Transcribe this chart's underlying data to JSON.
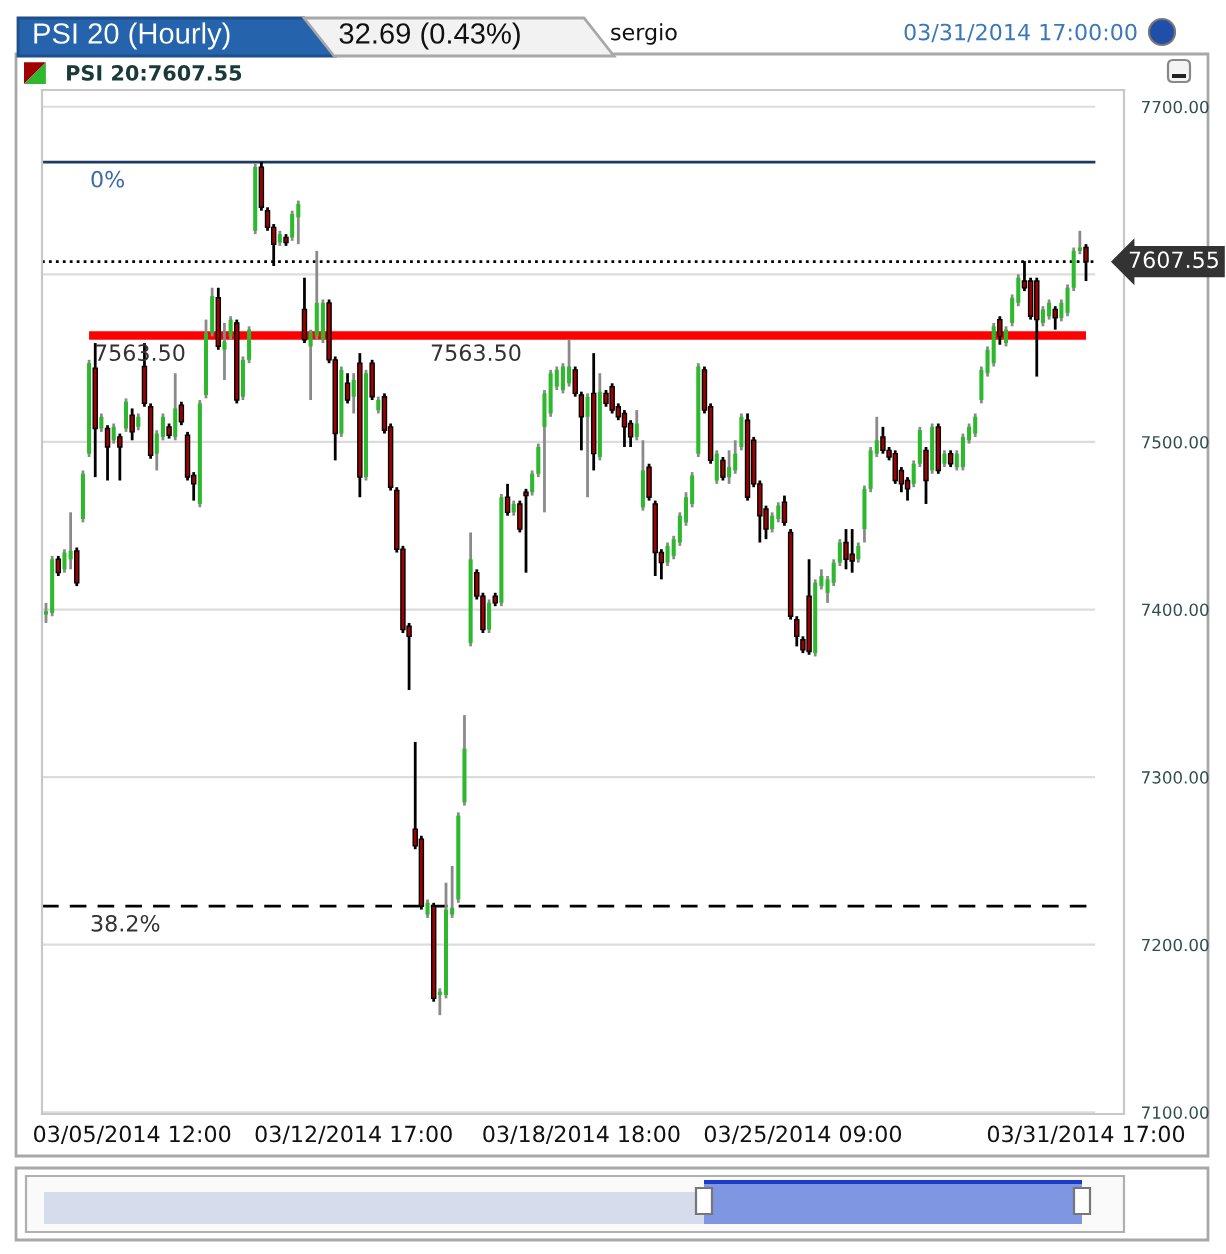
{
  "chart_data": {
    "type": "candlestick",
    "title": "PSI 20 (Hourly)",
    "subtitle": "32.69 (0.43%)",
    "annotations": [
      "sergio",
      "03/31/2014 17:00:00",
      {
        "text": "0%",
        "y": 7667
      },
      {
        "text": "38.2%",
        "y": 7223
      },
      {
        "text": "7563.50",
        "y": 7563.5
      },
      {
        "text": "7563.50",
        "y": 7563.5
      }
    ],
    "categories": [
      null,
      null,
      null,
      null,
      null,
      null,
      null,
      null,
      null,
      null,
      null,
      null,
      null,
      null,
      "03/05/2014 12:00",
      null,
      null,
      null,
      null,
      null,
      null,
      null,
      null,
      null,
      null,
      null,
      null,
      null,
      null,
      null,
      null,
      null,
      null,
      null,
      null,
      null,
      null,
      null,
      null,
      null,
      null,
      null,
      null,
      null,
      null,
      null,
      null,
      null,
      null,
      null,
      "03/12/2014 17:00",
      null,
      null,
      null,
      null,
      null,
      null,
      null,
      null,
      null,
      null,
      null,
      null,
      null,
      null,
      null,
      null,
      null,
      null,
      null,
      null,
      null,
      null,
      null,
      null,
      null,
      null,
      null,
      null,
      null,
      null,
      null,
      null,
      null,
      null,
      null,
      null,
      "03/18/2014 18:00",
      null,
      null,
      null,
      null,
      null,
      null,
      null,
      null,
      null,
      null,
      null,
      null,
      null,
      null,
      null,
      null,
      null,
      null,
      null,
      null,
      null,
      null,
      null,
      null,
      null,
      null,
      null,
      null,
      null,
      null,
      null,
      null,
      null,
      null,
      null,
      "03/25/2014 09:00",
      null,
      null,
      null,
      null,
      null,
      null,
      null,
      null,
      null,
      null,
      null,
      null,
      null,
      null,
      null,
      null,
      null,
      null,
      null,
      null,
      null,
      null,
      null,
      null,
      null,
      null,
      null,
      null,
      null,
      null,
      null,
      null,
      null,
      null,
      null,
      null,
      null,
      null,
      null,
      null,
      null,
      null,
      null,
      null,
      null,
      "03/31/2014 17:00"
    ],
    "series": [
      {
        "name": "PSI 20:7607.55",
        "ohlc": [
          [
            7397,
            7404,
            7392,
            7399
          ],
          [
            7398,
            7432,
            7396,
            7430
          ],
          [
            7430,
            7432,
            7420,
            7422
          ],
          [
            7424,
            7436,
            7422,
            7434
          ],
          [
            7430,
            7458,
            7424,
            7435
          ],
          [
            7435,
            7437,
            7414,
            7416
          ],
          [
            7454,
            7483,
            7452,
            7481
          ],
          [
            7493,
            7549,
            7491,
            7547
          ],
          [
            7544,
            7559,
            7479,
            7508
          ],
          [
            7508,
            7517,
            7506,
            7515
          ],
          [
            7508,
            7510,
            7477,
            7497
          ],
          [
            7501,
            7511,
            7499,
            7509
          ],
          [
            7503,
            7505,
            7477,
            7497
          ],
          [
            7508,
            7526,
            7506,
            7524
          ],
          [
            7516,
            7520,
            7501,
            7506
          ],
          [
            7509,
            7517,
            7507,
            7515
          ],
          [
            7545,
            7559,
            7521,
            7523
          ],
          [
            7521,
            7523,
            7490,
            7492
          ],
          [
            7493,
            7507,
            7483,
            7505
          ],
          [
            7503,
            7517,
            7501,
            7515
          ],
          [
            7509,
            7511,
            7502,
            7504
          ],
          [
            7503,
            7541,
            7501,
            7520
          ],
          [
            7522,
            7524,
            7510,
            7512
          ],
          [
            7504,
            7506,
            7477,
            7479
          ],
          [
            7480,
            7482,
            7465,
            7475
          ],
          [
            7463,
            7525,
            7461,
            7523
          ],
          [
            7528,
            7573,
            7526,
            7565
          ],
          [
            7565,
            7592,
            7563,
            7587
          ],
          [
            7586,
            7592,
            7555,
            7557
          ],
          [
            7555,
            7571,
            7537,
            7560
          ],
          [
            7563,
            7575,
            7561,
            7573
          ],
          [
            7571,
            7573,
            7523,
            7525
          ],
          [
            7527,
            7551,
            7525,
            7549
          ],
          [
            7549,
            7569,
            7547,
            7567
          ],
          [
            7626,
            7666,
            7624,
            7664
          ],
          [
            7664,
            7667,
            7638,
            7640
          ],
          [
            7638,
            7640,
            7626,
            7628
          ],
          [
            7628,
            7630,
            7605,
            7618
          ],
          [
            7619,
            7626,
            7617,
            7624
          ],
          [
            7622,
            7624,
            7617,
            7619
          ],
          [
            7622,
            7638,
            7620,
            7636
          ],
          [
            7634,
            7644,
            7618,
            7642
          ],
          [
            7579,
            7598,
            7559,
            7561
          ],
          [
            7557,
            7567,
            7525,
            7565
          ],
          [
            7563,
            7614,
            7561,
            7583
          ],
          [
            7561,
            7585,
            7559,
            7583
          ],
          [
            7583,
            7585,
            7547,
            7549
          ],
          [
            7549,
            7551,
            7489,
            7505
          ],
          [
            7505,
            7545,
            7503,
            7543
          ],
          [
            7535,
            7541,
            7523,
            7525
          ],
          [
            7527,
            7541,
            7517,
            7537
          ],
          [
            7547,
            7553,
            7467,
            7479
          ],
          [
            7479,
            7543,
            7477,
            7541
          ],
          [
            7547,
            7549,
            7525,
            7527
          ],
          [
            7519,
            7527,
            7517,
            7525
          ],
          [
            7527,
            7529,
            7505,
            7507
          ],
          [
            7509,
            7511,
            7471,
            7473
          ],
          [
            7471,
            7473,
            7434,
            7436
          ],
          [
            7436,
            7438,
            7386,
            7388
          ],
          [
            7390,
            7392,
            7352,
            7384
          ],
          [
            7269,
            7321,
            7257,
            7259
          ],
          [
            7263,
            7265,
            7221,
            7223
          ],
          [
            7218,
            7227,
            7216,
            7225
          ],
          [
            7223,
            7225,
            7166,
            7168
          ],
          [
            7170,
            7174,
            7158,
            7172
          ],
          [
            7170,
            7237,
            7168,
            7221
          ],
          [
            7218,
            7247,
            7216,
            7222
          ],
          [
            7227,
            7279,
            7225,
            7277
          ],
          [
            7285,
            7337,
            7283,
            7317
          ],
          [
            7380,
            7446,
            7378,
            7430
          ],
          [
            7422,
            7424,
            7406,
            7408
          ],
          [
            7408,
            7410,
            7386,
            7388
          ],
          [
            7388,
            7406,
            7386,
            7404
          ],
          [
            7408,
            7410,
            7402,
            7404
          ],
          [
            7404,
            7469,
            7402,
            7467
          ],
          [
            7467,
            7475,
            7456,
            7458
          ],
          [
            7458,
            7465,
            7456,
            7463
          ],
          [
            7463,
            7465,
            7446,
            7448
          ],
          [
            7470,
            7472,
            7422,
            7468
          ],
          [
            7470,
            7483,
            7468,
            7481
          ],
          [
            7481,
            7499,
            7479,
            7497
          ],
          [
            7509,
            7531,
            7458,
            7529
          ],
          [
            7517,
            7543,
            7515,
            7541
          ],
          [
            7533,
            7545,
            7531,
            7543
          ],
          [
            7531,
            7547,
            7529,
            7545
          ],
          [
            7535,
            7561,
            7533,
            7545
          ],
          [
            7543,
            7545,
            7527,
            7529
          ],
          [
            7528,
            7530,
            7495,
            7515
          ],
          [
            7515,
            7529,
            7467,
            7527
          ],
          [
            7529,
            7553,
            7483,
            7493
          ],
          [
            7491,
            7541,
            7489,
            7530
          ],
          [
            7529,
            7531,
            7521,
            7523
          ],
          [
            7533,
            7535,
            7517,
            7519
          ],
          [
            7521,
            7523,
            7513,
            7515
          ],
          [
            7517,
            7519,
            7497,
            7509
          ],
          [
            7511,
            7513,
            7497,
            7503
          ],
          [
            7503,
            7519,
            7501,
            7511
          ],
          [
            7461,
            7501,
            7459,
            7483
          ],
          [
            7485,
            7487,
            7465,
            7467
          ],
          [
            7463,
            7465,
            7420,
            7434
          ],
          [
            7434,
            7436,
            7418,
            7428
          ],
          [
            7428,
            7440,
            7426,
            7438
          ],
          [
            7432,
            7444,
            7430,
            7442
          ],
          [
            7440,
            7458,
            7438,
            7456
          ],
          [
            7452,
            7470,
            7450,
            7467
          ],
          [
            7463,
            7482,
            7461,
            7480
          ],
          [
            7493,
            7547,
            7491,
            7545
          ],
          [
            7543,
            7545,
            7517,
            7519
          ],
          [
            7521,
            7523,
            7487,
            7489
          ],
          [
            7477,
            7495,
            7475,
            7493
          ],
          [
            7489,
            7491,
            7477,
            7479
          ],
          [
            7479,
            7495,
            7475,
            7485
          ],
          [
            7483,
            7501,
            7481,
            7493
          ],
          [
            7497,
            7517,
            7495,
            7515
          ],
          [
            7513,
            7517,
            7465,
            7467
          ],
          [
            7501,
            7503,
            7473,
            7475
          ],
          [
            7475,
            7477,
            7440,
            7456
          ],
          [
            7460,
            7462,
            7442,
            7448
          ],
          [
            7448,
            7458,
            7446,
            7456
          ],
          [
            7454,
            7464,
            7452,
            7462
          ],
          [
            7464,
            7468,
            7450,
            7452
          ],
          [
            7446,
            7448,
            7394,
            7396
          ],
          [
            7394,
            7396,
            7378,
            7384
          ],
          [
            7382,
            7384,
            7374,
            7376
          ],
          [
            7408,
            7430,
            7373,
            7375
          ],
          [
            7374,
            7418,
            7372,
            7416
          ],
          [
            7414,
            7424,
            7412,
            7420
          ],
          [
            7410,
            7420,
            7404,
            7418
          ],
          [
            7416,
            7430,
            7414,
            7428
          ],
          [
            7428,
            7442,
            7426,
            7440
          ],
          [
            7440,
            7448,
            7424,
            7430
          ],
          [
            7433,
            7448,
            7422,
            7429
          ],
          [
            7430,
            7440,
            7428,
            7438
          ],
          [
            7448,
            7474,
            7440,
            7472
          ],
          [
            7472,
            7497,
            7470,
            7495
          ],
          [
            7493,
            7515,
            7491,
            7501
          ],
          [
            7503,
            7509,
            7493,
            7495
          ],
          [
            7495,
            7497,
            7489,
            7491
          ],
          [
            7493,
            7495,
            7475,
            7477
          ],
          [
            7483,
            7485,
            7470,
            7475
          ],
          [
            7477,
            7479,
            7465,
            7472
          ],
          [
            7475,
            7489,
            7473,
            7487
          ],
          [
            7487,
            7509,
            7485,
            7507
          ],
          [
            7495,
            7497,
            7463,
            7477
          ],
          [
            7483,
            7511,
            7481,
            7509
          ],
          [
            7509,
            7511,
            7481,
            7483
          ],
          [
            7487,
            7495,
            7485,
            7493
          ],
          [
            7493,
            7495,
            7485,
            7487
          ],
          [
            7485,
            7495,
            7483,
            7493
          ],
          [
            7485,
            7505,
            7483,
            7503
          ],
          [
            7501,
            7511,
            7499,
            7509
          ],
          [
            7505,
            7517,
            7503,
            7515
          ],
          [
            7525,
            7545,
            7523,
            7543
          ],
          [
            7541,
            7557,
            7539,
            7555
          ],
          [
            7547,
            7571,
            7545,
            7569
          ],
          [
            7573,
            7575,
            7558,
            7563
          ],
          [
            7559,
            7569,
            7557,
            7567
          ],
          [
            7571,
            7588,
            7569,
            7586
          ],
          [
            7583,
            7600,
            7581,
            7598
          ],
          [
            7596,
            7608,
            7590,
            7592
          ],
          [
            7596,
            7598,
            7573,
            7575
          ],
          [
            7596,
            7598,
            7539,
            7573
          ],
          [
            7571,
            7581,
            7569,
            7579
          ],
          [
            7575,
            7585,
            7573,
            7583
          ],
          [
            7579,
            7581,
            7567,
            7574
          ],
          [
            7574,
            7585,
            7572,
            7583
          ],
          [
            7577,
            7594,
            7575,
            7592
          ],
          [
            7592,
            7616,
            7590,
            7614
          ],
          [
            7614,
            7626,
            7612,
            7616
          ],
          [
            7616,
            7618,
            7596,
            7607.55
          ]
        ],
        "colors": [
          "#2eb82e",
          "#2eb82e",
          "#a00000",
          "#2eb82e",
          "#2eb82e",
          "#a00000",
          "#2eb82e",
          "#2eb82e",
          "#a00000",
          "#2eb82e",
          "#a00000",
          "#2eb82e",
          "#a00000",
          "#2eb82e",
          "#a00000",
          "#2eb82e",
          "#a00000",
          "#a00000",
          "#2eb82e",
          "#2eb82e",
          "#a00000",
          "#2eb82e",
          "#a00000",
          "#a00000",
          "#a00000",
          "#2eb82e",
          "#2eb82e",
          "#2eb82e",
          "#a00000",
          "#2eb82e",
          "#2eb82e",
          "#a00000",
          "#2eb82e",
          "#2eb82e",
          "#2eb82e",
          "#a00000",
          "#a00000",
          "#a00000",
          "#2eb82e",
          "#a00000",
          "#2eb82e",
          "#2eb82e",
          "#a00000",
          "#2eb82e",
          "#2eb82e",
          "#2eb82e",
          "#a00000",
          "#a00000",
          "#2eb82e",
          "#a00000",
          "#2eb82e",
          "#a00000",
          "#2eb82e",
          "#a00000",
          "#2eb82e",
          "#a00000",
          "#a00000",
          "#a00000",
          "#a00000",
          "#a00000",
          "#a00000",
          "#a00000",
          "#2eb82e",
          "#a00000",
          "#2eb82e",
          "#2eb82e",
          "#2eb82e",
          "#2eb82e",
          "#2eb82e",
          "#2eb82e",
          "#a00000",
          "#a00000",
          "#2eb82e",
          "#a00000",
          "#2eb82e",
          "#a00000",
          "#2eb82e",
          "#a00000",
          "#a00000",
          "#2eb82e",
          "#2eb82e",
          "#2eb82e",
          "#2eb82e",
          "#2eb82e",
          "#2eb82e",
          "#2eb82e",
          "#a00000",
          "#a00000",
          "#2eb82e",
          "#a00000",
          "#2eb82e",
          "#a00000",
          "#a00000",
          "#a00000",
          "#a00000",
          "#a00000",
          "#2eb82e",
          "#2eb82e",
          "#a00000",
          "#a00000",
          "#a00000",
          "#2eb82e",
          "#2eb82e",
          "#2eb82e",
          "#2eb82e",
          "#2eb82e",
          "#2eb82e",
          "#a00000",
          "#a00000",
          "#2eb82e",
          "#a00000",
          "#2eb82e",
          "#2eb82e",
          "#2eb82e",
          "#a00000",
          "#a00000",
          "#a00000",
          "#a00000",
          "#2eb82e",
          "#2eb82e",
          "#a00000",
          "#a00000",
          "#a00000",
          "#a00000",
          "#a00000",
          "#2eb82e",
          "#2eb82e",
          "#2eb82e",
          "#2eb82e",
          "#2eb82e",
          "#a00000",
          "#a00000",
          "#2eb82e",
          "#2eb82e",
          "#2eb82e",
          "#2eb82e",
          "#a00000",
          "#a00000",
          "#a00000",
          "#a00000",
          "#a00000",
          "#2eb82e",
          "#2eb82e",
          "#a00000",
          "#2eb82e",
          "#a00000",
          "#2eb82e",
          "#a00000",
          "#2eb82e",
          "#2eb82e",
          "#2eb82e",
          "#2eb82e",
          "#2eb82e",
          "#2eb82e",
          "#2eb82e",
          "#a00000",
          "#2eb82e",
          "#2eb82e",
          "#2eb82e",
          "#a00000",
          "#a00000",
          "#a00000",
          "#2eb82e",
          "#2eb82e",
          "#a00000",
          "#2eb82e",
          "#2eb82e",
          "#2eb82e",
          "#2eb82e",
          "#a00000"
        ]
      },
      {
        "type": "line",
        "color": "#ff0000",
        "values": [
          null,
          null,
          null,
          null,
          null,
          null,
          null,
          7563.5,
          7563.5,
          7563.5,
          7563.5,
          7563.5,
          7563.5,
          7563.5,
          7563.5,
          7563.5,
          7563.5,
          7563.5,
          7563.5,
          7563.5,
          7563.5,
          7563.5,
          7563.5,
          7563.5,
          7563.5,
          7563.5,
          7563.5,
          7563.5,
          7563.5,
          7563.5,
          7563.5,
          7563.5,
          7563.5,
          7563.5,
          7563.5,
          7563.5,
          7563.5,
          7563.5,
          7563.5,
          7563.5,
          7563.5,
          7563.5,
          7563.5,
          7563.5,
          7563.5,
          7563.5,
          7563.5,
          7563.5,
          7563.5,
          7563.5,
          7563.5,
          7563.5,
          7563.5,
          7563.5,
          7563.5,
          7563.5,
          7563.5,
          7563.5,
          7563.5,
          7563.5,
          7563.5,
          7563.5,
          7563.5,
          7563.5,
          7563.5,
          7563.5,
          7563.5,
          7563.5,
          7563.5,
          7563.5,
          7563.5,
          7563.5,
          7563.5,
          7563.5,
          7563.5,
          7563.5,
          7563.5,
          7563.5,
          7563.5,
          7563.5,
          7563.5,
          7563.5,
          7563.5,
          7563.5,
          7563.5,
          7563.5,
          7563.5,
          7563.5,
          7563.5,
          7563.5,
          7563.5,
          7563.5,
          7563.5,
          7563.5,
          7563.5,
          7563.5,
          7563.5,
          7563.5,
          7563.5,
          7563.5,
          7563.5,
          7563.5,
          7563.5,
          7563.5,
          7563.5,
          7563.5,
          7563.5,
          7563.5,
          7563.5,
          7563.5,
          7563.5,
          7563.5,
          7563.5,
          7563.5,
          7563.5,
          7563.5,
          7563.5,
          7563.5,
          7563.5,
          7563.5,
          7563.5,
          7563.5,
          7563.5,
          7563.5,
          7563.5,
          7563.5,
          7563.5,
          7563.5,
          7563.5,
          7563.5,
          7563.5,
          7563.5,
          7563.5,
          7563.5,
          7563.5,
          7563.5,
          7563.5,
          7563.5,
          7563.5,
          7563.5,
          7563.5,
          7563.5,
          7563.5,
          7563.5,
          7563.5,
          7563.5,
          7563.5,
          7563.5,
          7563.5,
          7563.5,
          7563.5,
          7563.5,
          7563.5,
          7563.5,
          7563.5,
          7563.5,
          7563.5,
          7563.5,
          7563.5,
          7563.5,
          7563.5,
          7563.5,
          7563.5,
          7563.5,
          7563.5,
          7563.5,
          7563.5,
          7563.5,
          7563.5,
          7563.5
        ]
      }
    ],
    "ylim": [
      7099,
      7710
    ],
    "yticks": [
      {
        "value": 7100,
        "label": "7100.00"
      },
      {
        "value": 7200,
        "label": "7200.00"
      },
      {
        "value": 7300,
        "label": "7300.00"
      },
      {
        "value": 7400,
        "label": "7400.00"
      },
      {
        "value": 7500,
        "label": "7500.00"
      },
      {
        "value": 7600,
        "label": null
      },
      {
        "value": 7700,
        "label": "7700.00"
      }
    ],
    "ref_lines": [
      {
        "axis": "y",
        "value": 7667,
        "color": "#1c3b63",
        "line_style": "solid"
      },
      {
        "axis": "y",
        "value": 7223,
        "color": "#000000",
        "line_style": "dashed"
      },
      {
        "axis": "y",
        "value": 7607.55,
        "label": "7607.55",
        "color": "#000000",
        "line_style": "dotted"
      }
    ],
    "grid": "y",
    "legend": "top left"
  }
}
